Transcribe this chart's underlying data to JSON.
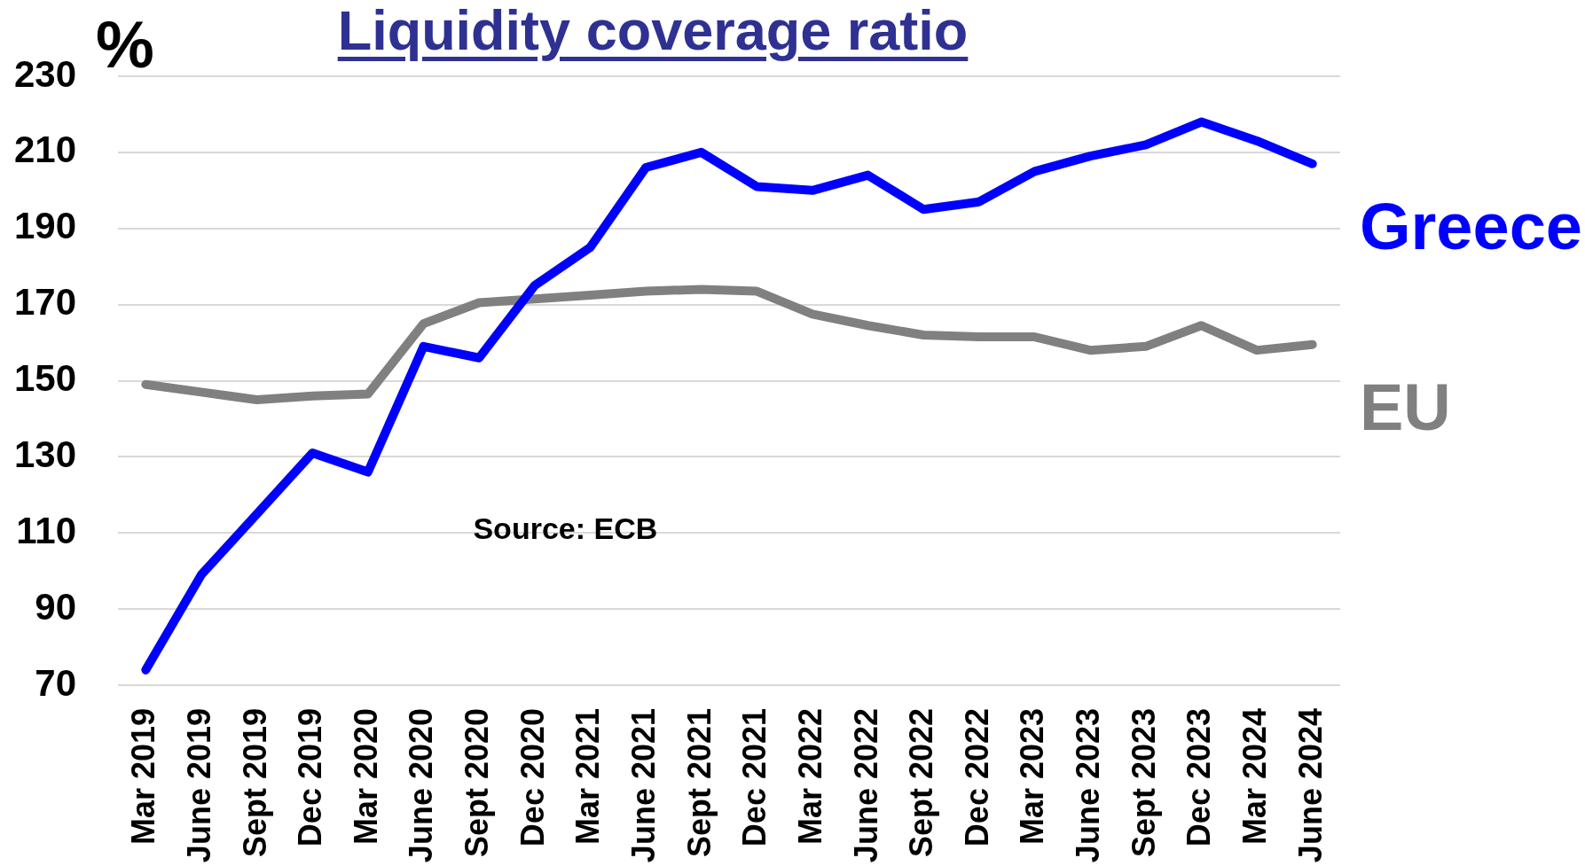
{
  "chart_data": {
    "type": "line",
    "title": "Liquidity coverage ratio",
    "ylabel": "%",
    "categories": [
      "Mar 2019",
      "June 2019",
      "Sept 2019",
      "Dec 2019",
      "Mar 2020",
      "June 2020",
      "Sept 2020",
      "Dec 2020",
      "Mar 2021",
      "June 2021",
      "Sept 2021",
      "Dec 2021",
      "Mar 2022",
      "June 2022",
      "Sept 2022",
      "Dec 2022",
      "Mar 2023",
      "June 2023",
      "Sept 2023",
      "Dec 2023",
      "Mar 2024",
      "June 2024"
    ],
    "series": [
      {
        "name": "Greece",
        "color": "#0000ff",
        "values": [
          74,
          99,
          115,
          131,
          126,
          159,
          156,
          175,
          185,
          206,
          210,
          201,
          200,
          204,
          195,
          197,
          205,
          209,
          212,
          218,
          213,
          207
        ]
      },
      {
        "name": "EU",
        "color": "#808080",
        "values": [
          149,
          147,
          145,
          146,
          146.5,
          165,
          170.5,
          171.5,
          172.5,
          173.5,
          174,
          173.5,
          167.5,
          164.5,
          162,
          161.5,
          161.5,
          158,
          159,
          164.5,
          158,
          159.5
        ]
      }
    ],
    "ylim": [
      70,
      230
    ],
    "yticks": [
      70,
      90,
      110,
      130,
      150,
      170,
      190,
      210,
      230
    ],
    "grid": "y",
    "marker": "none",
    "line_style": "solid",
    "annotations": [
      "Source: ECB"
    ]
  }
}
